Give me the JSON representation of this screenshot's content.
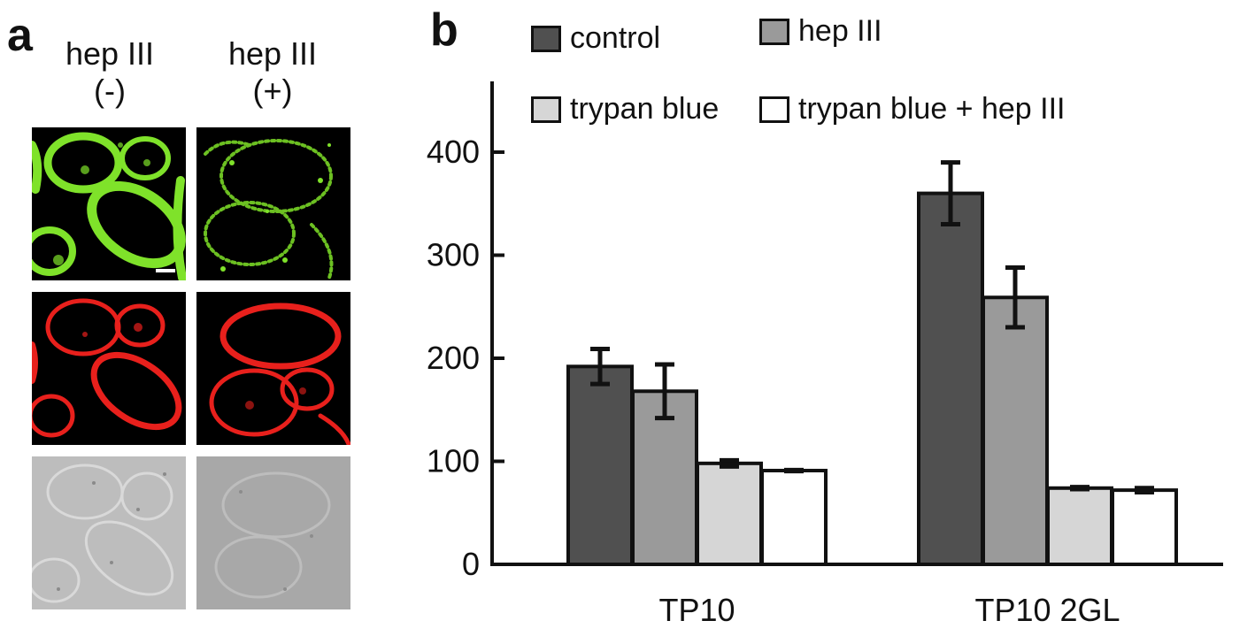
{
  "panel_a": {
    "letter": "a",
    "columns": [
      {
        "line1": "hep III",
        "line2": "(-)"
      },
      {
        "line1": "hep III",
        "line2": "(+)"
      }
    ],
    "rows": [
      "green fluorescence",
      "red fluorescence",
      "brightfield"
    ]
  },
  "panel_b": {
    "letter": "b"
  },
  "chart_data": {
    "type": "bar",
    "categories": [
      "TP10",
      "TP10 2GL"
    ],
    "series": [
      {
        "name": "control",
        "values": [
          192,
          360
        ],
        "errors": [
          17,
          30
        ],
        "color": "#505050"
      },
      {
        "name": "hep III",
        "values": [
          168,
          259
        ],
        "errors": [
          26,
          29
        ],
        "color": "#9a9a9a"
      },
      {
        "name": "trypan blue",
        "values": [
          98,
          74
        ],
        "errors": [
          3,
          1
        ],
        "color": "#d6d6d6"
      },
      {
        "name": "trypan blue + hep III",
        "values": [
          91,
          72
        ],
        "errors": [
          0.5,
          2
        ],
        "color": "#ffffff"
      }
    ],
    "yticks": [
      0,
      100,
      200,
      300,
      400
    ],
    "ylim": [
      0,
      450
    ],
    "title": "",
    "xlabel": "",
    "ylabel": "",
    "legend_placement": "top"
  }
}
